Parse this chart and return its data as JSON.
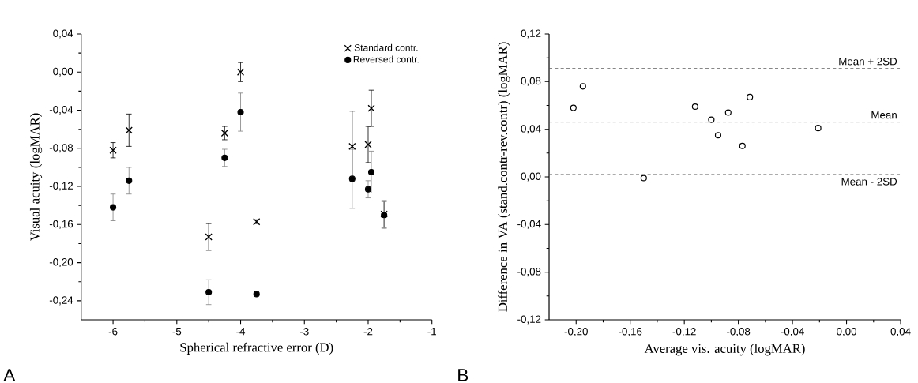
{
  "chart_data": [
    {
      "type": "scatter",
      "xlabel": "Spherical refractive error (D)",
      "ylabel": "Visual acuity (logMAR)",
      "xlim": [
        -6.5,
        -1
      ],
      "xticks": [
        -6,
        -5,
        -4,
        -3,
        -2,
        -1
      ],
      "ylim": [
        -0.26,
        0.04
      ],
      "yticks": [
        {
          "value": 0.04,
          "label": "0,04"
        },
        {
          "value": 0.0,
          "label": "0,00"
        },
        {
          "value": -0.04,
          "label": "-0,04"
        },
        {
          "value": -0.08,
          "label": "-0,08"
        },
        {
          "value": -0.12,
          "label": "-0,12"
        },
        {
          "value": -0.16,
          "label": "-0,16"
        },
        {
          "value": -0.2,
          "label": "-0,20"
        },
        {
          "value": -0.24,
          "label": "-0,24"
        }
      ],
      "legend": "top right",
      "annotations": [
        "A"
      ],
      "series": [
        {
          "name": "Standard contr.",
          "color": "#000000",
          "marker": "cross",
          "x": [
            -6,
            -5.75,
            -4.5,
            -4.25,
            -4,
            -3.75,
            -2.25,
            -2,
            -1.95,
            -1.75
          ],
          "values": [
            -0.082,
            -0.061,
            -0.173,
            -0.064,
            0.0,
            -0.157,
            -0.078,
            -0.076,
            -0.038,
            -0.149
          ],
          "errors": [
            0.008,
            0.017,
            0.014,
            0.007,
            0.01,
            0.002,
            0.037,
            0.019,
            0.019,
            0.014
          ]
        },
        {
          "name": "Reversed contr.",
          "color": "#000000",
          "marker": "circle",
          "x": [
            -6,
            -5.75,
            -4.5,
            -4.25,
            -4,
            -3.75,
            -2.25,
            -2,
            -1.95,
            -1.75
          ],
          "values": [
            -0.142,
            -0.114,
            -0.231,
            -0.09,
            -0.042,
            -0.233,
            -0.112,
            -0.123,
            -0.105,
            -0.15
          ],
          "errors": [
            0.014,
            0.014,
            0.013,
            0.009,
            0.02,
            0.002,
            0.031,
            0.009,
            0.022,
            0.014
          ]
        }
      ]
    },
    {
      "type": "scatter",
      "xlabel": "Average vis. acuity (logMAR)",
      "ylabel": "Difference in VA (stand.contr-rev.contr) (logMAR)",
      "xlim": [
        -0.22,
        0.04
      ],
      "xticks": [
        {
          "value": -0.2,
          "label": "-0,20"
        },
        {
          "value": -0.16,
          "label": "-0,16"
        },
        {
          "value": -0.12,
          "label": "-0,12"
        },
        {
          "value": -0.08,
          "label": "-0,08"
        },
        {
          "value": -0.04,
          "label": "-0,04"
        },
        {
          "value": 0.0,
          "label": "0,00"
        },
        {
          "value": 0.04,
          "label": "0,04"
        }
      ],
      "ylim": [
        -0.12,
        0.12
      ],
      "yticks": [
        {
          "value": 0.12,
          "label": "0,12"
        },
        {
          "value": 0.08,
          "label": "0,08"
        },
        {
          "value": 0.04,
          "label": "0,04"
        },
        {
          "value": 0.0,
          "label": "0,00"
        },
        {
          "value": -0.04,
          "label": "-0,04"
        },
        {
          "value": -0.08,
          "label": "-0,08"
        },
        {
          "value": -0.12,
          "label": "-0,12"
        }
      ],
      "annotations": [
        "B"
      ],
      "ref_lines": [
        {
          "axis": "y",
          "value": 0.091,
          "label": "Mean + 2SD",
          "color": "#555555",
          "line_style": "dashed"
        },
        {
          "axis": "y",
          "value": 0.046,
          "label": "Mean",
          "color": "#555555",
          "line_style": "dashed"
        },
        {
          "axis": "y",
          "value": 0.002,
          "label": "Mean - 2SD",
          "color": "#555555",
          "line_style": "dashed"
        }
      ],
      "series": [
        {
          "color": "#000000",
          "marker": "circle",
          "x": [
            -0.202,
            -0.195,
            -0.15,
            -0.112,
            -0.1,
            -0.095,
            -0.0875,
            -0.077,
            -0.0715,
            -0.021
          ],
          "values": [
            0.058,
            0.076,
            -0.001,
            0.059,
            0.048,
            0.035,
            0.054,
            0.026,
            0.067,
            0.041
          ]
        }
      ]
    }
  ]
}
